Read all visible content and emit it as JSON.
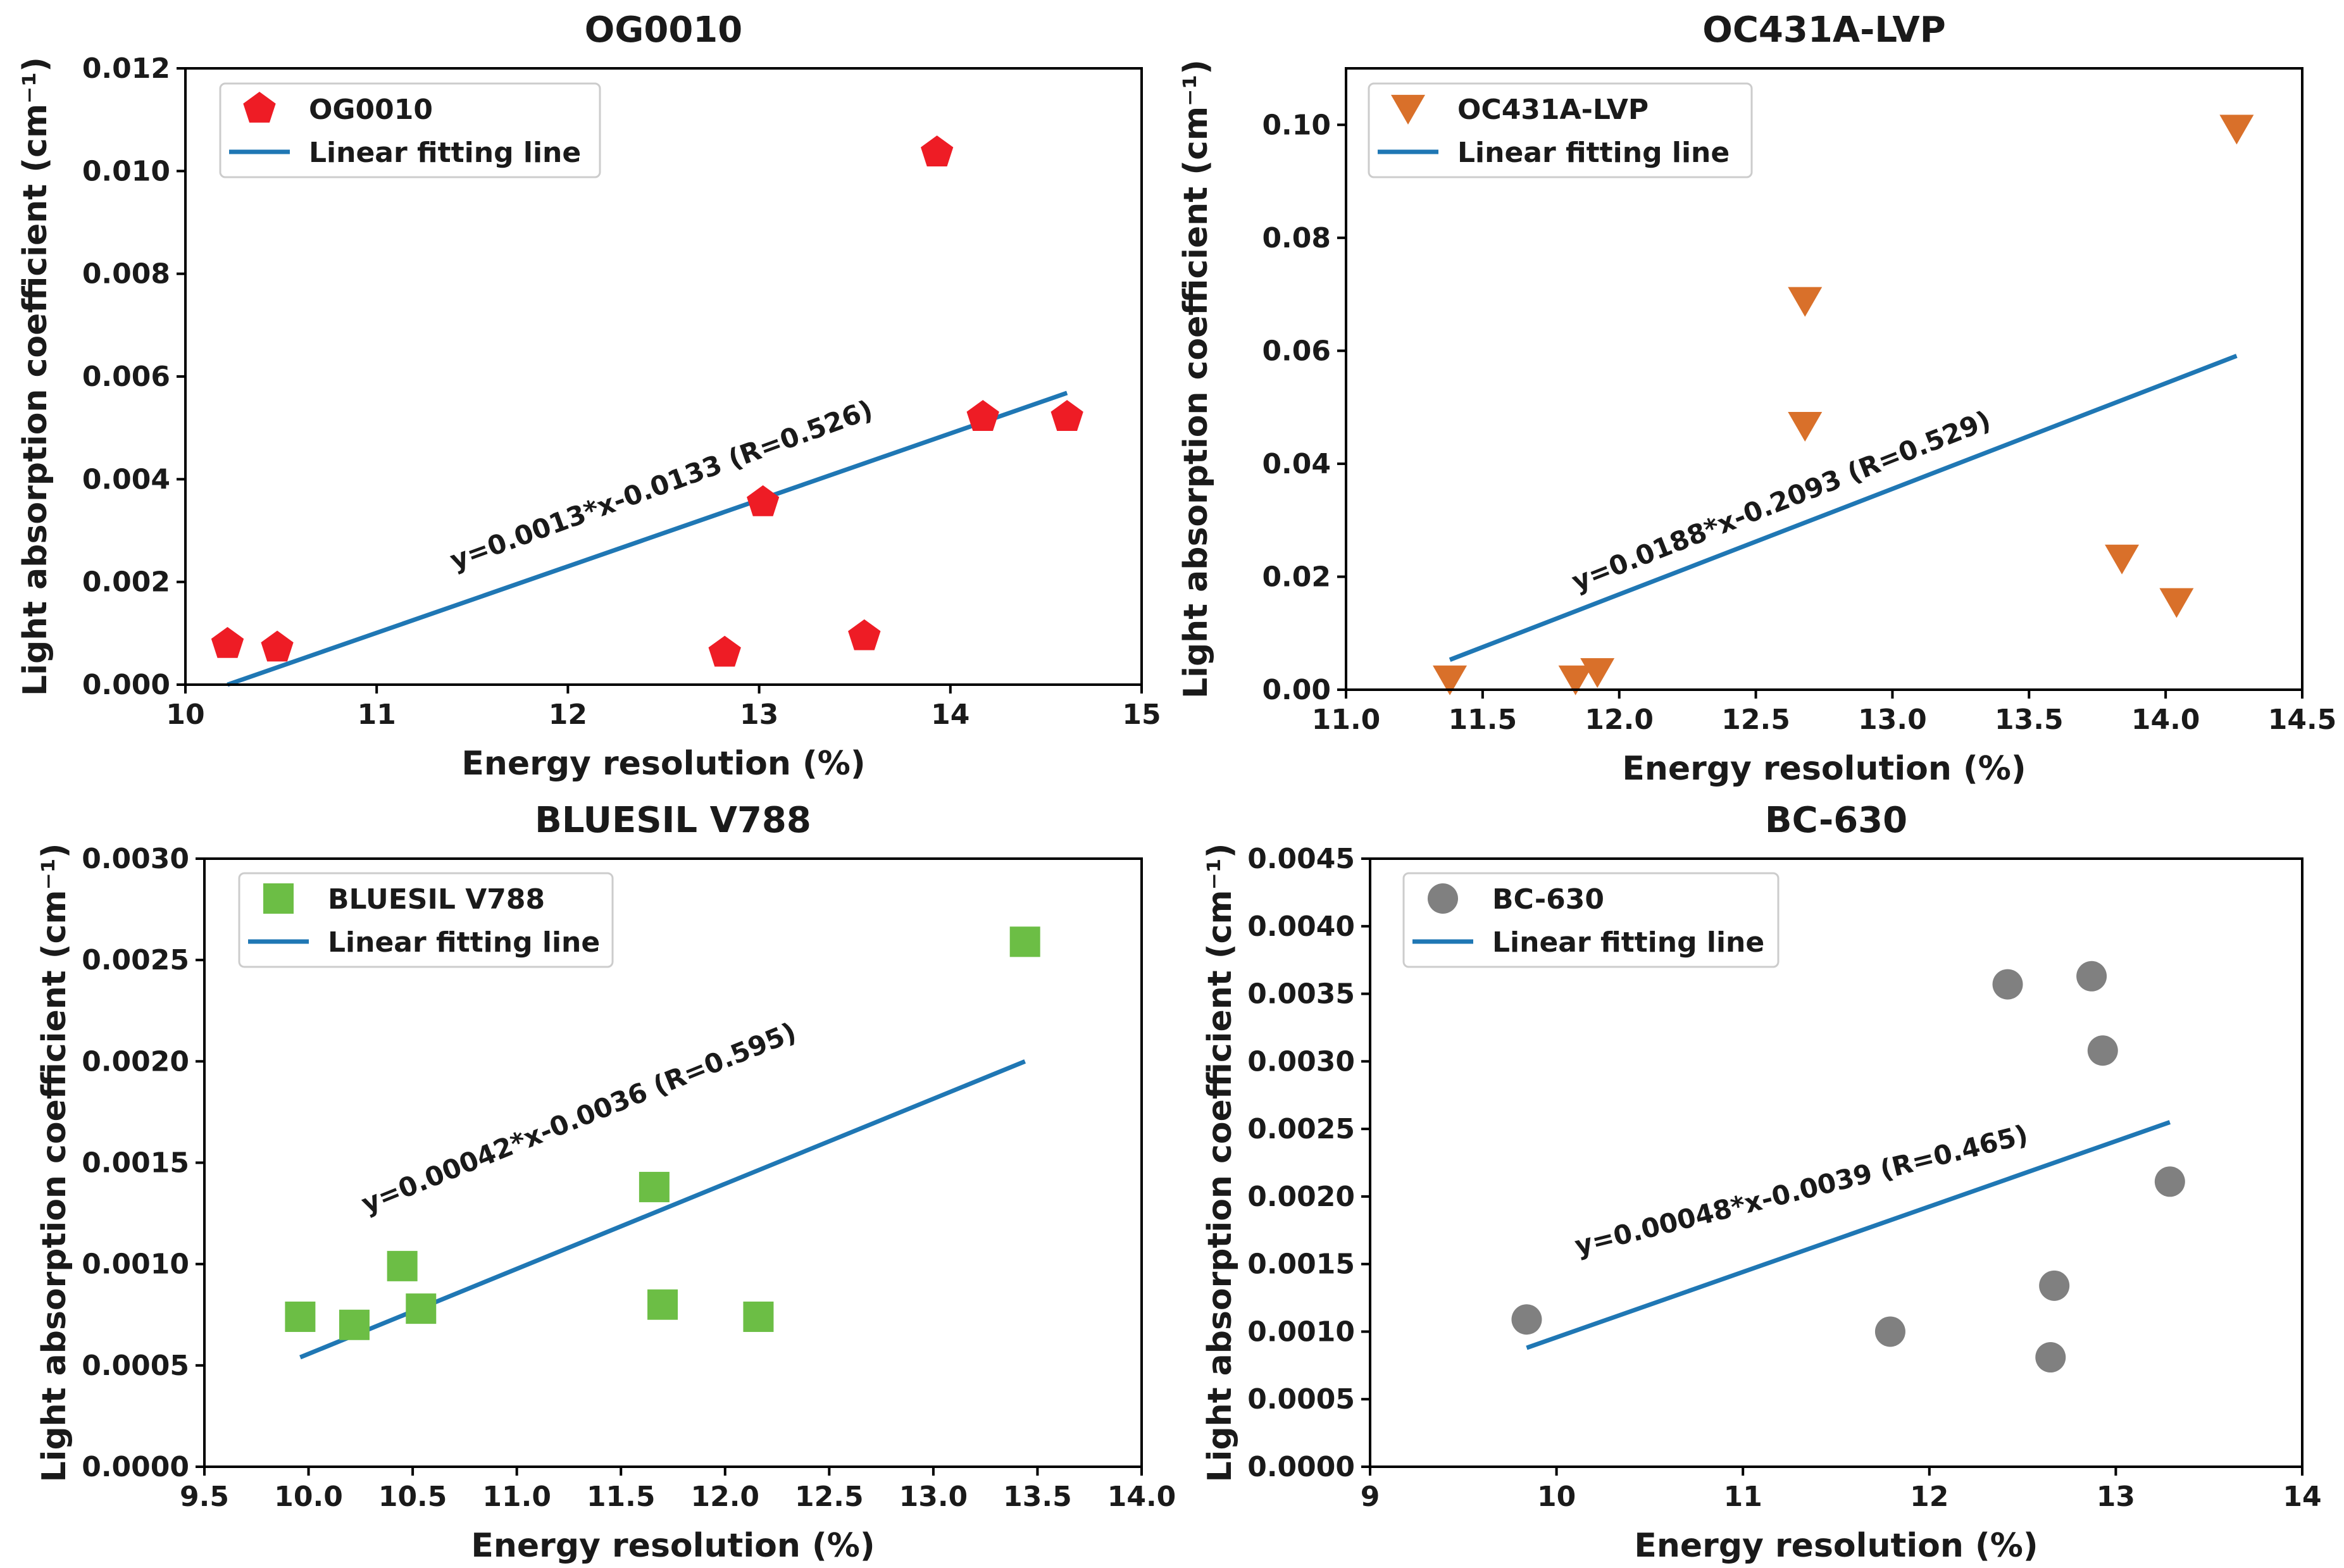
{
  "colors": {
    "fit_line": "#1f77b4",
    "og0010": "#ee1c25",
    "oc431a": "#d9702a",
    "bluesil": "#6cbe45",
    "bc630": "#808080"
  },
  "chart_data": [
    {
      "type": "scatter",
      "title": "OG0010",
      "xlabel": "Energy resolution (%)",
      "ylabel": "Light absorption coefficient (cm⁻¹)",
      "xlim": [
        10,
        15
      ],
      "ylim": [
        0,
        0.012
      ],
      "xticks": [
        10,
        11,
        12,
        13,
        14,
        15
      ],
      "xtick_labels": [
        "10",
        "11",
        "12",
        "13",
        "14",
        "15"
      ],
      "yticks": [
        0,
        0.002,
        0.004,
        0.006,
        0.008,
        0.01,
        0.012
      ],
      "ytick_labels": [
        "0.000",
        "0.002",
        "0.004",
        "0.006",
        "0.008",
        "0.010",
        "0.012"
      ],
      "marker": "pentagon",
      "marker_color": "#ee1c25",
      "series": [
        {
          "name": "OG0010",
          "x": [
            10.22,
            10.48,
            12.82,
            13.02,
            13.55,
            13.93,
            14.17,
            14.61
          ],
          "y": [
            0.00079,
            0.00072,
            0.00062,
            0.00355,
            0.00094,
            0.01036,
            0.00521,
            0.00521
          ]
        }
      ],
      "fit": {
        "name": "Linear fitting line",
        "x": [
          10.22,
          14.61
        ],
        "y": [
          0.0,
          0.00568
        ],
        "equation": "y=0.0013*x-0.0133 (R=0.526)"
      },
      "legend": [
        "OG0010",
        "Linear fitting line"
      ],
      "legend_position": "top-left"
    },
    {
      "type": "scatter",
      "title": "OC431A-LVP",
      "xlabel": "Energy resolution (%)",
      "ylabel": "Light absorption coefficient (cm⁻¹)",
      "xlim": [
        11.0,
        14.5
      ],
      "ylim": [
        0,
        0.11
      ],
      "xticks": [
        11.0,
        11.5,
        12.0,
        12.5,
        13.0,
        13.5,
        14.0,
        14.5
      ],
      "xtick_labels": [
        "11.0",
        "11.5",
        "12.0",
        "12.5",
        "13.0",
        "13.5",
        "14.0",
        "14.5"
      ],
      "yticks": [
        0,
        0.02,
        0.04,
        0.06,
        0.08,
        0.1
      ],
      "ytick_labels": [
        "0.00",
        "0.02",
        "0.04",
        "0.06",
        "0.08",
        "0.10"
      ],
      "marker": "triangle-down",
      "marker_color": "#d9702a",
      "series": [
        {
          "name": "OC431A-LVP",
          "x": [
            11.38,
            11.84,
            11.92,
            12.68,
            12.68,
            13.84,
            14.04,
            14.26
          ],
          "y": [
            0.0018,
            0.0018,
            0.0031,
            0.0688,
            0.0467,
            0.0232,
            0.0155,
            0.0993
          ]
        }
      ],
      "fit": {
        "name": "Linear fitting line",
        "x": [
          11.38,
          14.26
        ],
        "y": [
          0.0053,
          0.0591
        ],
        "equation": "y=0.0188*x-0.2093 (R=0.529)"
      },
      "legend": [
        "OC431A-LVP",
        "Linear fitting line"
      ],
      "legend_position": "top-left"
    },
    {
      "type": "scatter",
      "title": "BLUESIL V788",
      "xlabel": "Energy resolution (%)",
      "ylabel": "Light absorption coefficient (cm⁻¹)",
      "xlim": [
        9.5,
        14.0
      ],
      "ylim": [
        0,
        0.003
      ],
      "xticks": [
        9.5,
        10.0,
        10.5,
        11.0,
        11.5,
        12.0,
        12.5,
        13.0,
        13.5,
        14.0
      ],
      "xtick_labels": [
        "9.5",
        "10.0",
        "10.5",
        "11.0",
        "11.5",
        "12.0",
        "12.5",
        "13.0",
        "13.5",
        "14.0"
      ],
      "yticks": [
        0,
        0.0005,
        0.001,
        0.0015,
        0.002,
        0.0025,
        0.003
      ],
      "ytick_labels": [
        "0.0000",
        "0.0005",
        "0.0010",
        "0.0015",
        "0.0020",
        "0.0025",
        "0.0030"
      ],
      "marker": "square",
      "marker_color": "#6cbe45",
      "series": [
        {
          "name": "BLUESIL V788",
          "x": [
            9.96,
            10.22,
            10.45,
            10.54,
            11.66,
            11.7,
            12.16,
            13.44
          ],
          "y": [
            0.00074,
            0.0007,
            0.00099,
            0.00078,
            0.00138,
            0.0008,
            0.00074,
            0.00259
          ]
        }
      ],
      "fit": {
        "name": "Linear fitting line",
        "x": [
          9.96,
          13.44
        ],
        "y": [
          0.00054,
          0.002
        ],
        "equation": "y=0.00042*x-0.0036 (R=0.595)"
      },
      "legend": [
        "BLUESIL V788",
        "Linear fitting line"
      ],
      "legend_position": "top-left"
    },
    {
      "type": "scatter",
      "title": "BC-630",
      "xlabel": "Energy resolution (%)",
      "ylabel": "Light absorption coefficient (cm⁻¹)",
      "xlim": [
        9,
        14
      ],
      "ylim": [
        0,
        0.0045
      ],
      "xticks": [
        9,
        10,
        11,
        12,
        13,
        14
      ],
      "xtick_labels": [
        "9",
        "10",
        "11",
        "12",
        "13",
        "14"
      ],
      "yticks": [
        0,
        0.0005,
        0.001,
        0.0015,
        0.002,
        0.0025,
        0.003,
        0.0035,
        0.004,
        0.0045
      ],
      "ytick_labels": [
        "0.0000",
        "0.0005",
        "0.0010",
        "0.0015",
        "0.0020",
        "0.0025",
        "0.0030",
        "0.0035",
        "0.0040",
        "0.0045"
      ],
      "marker": "circle",
      "marker_color": "#808080",
      "series": [
        {
          "name": "BC-630",
          "x": [
            9.84,
            11.79,
            12.42,
            12.65,
            12.67,
            12.87,
            12.93,
            13.29
          ],
          "y": [
            0.00109,
            0.001,
            0.00357,
            0.00081,
            0.00134,
            0.00363,
            0.00308,
            0.00211
          ]
        }
      ],
      "fit": {
        "name": "Linear fitting line",
        "x": [
          9.84,
          13.29
        ],
        "y": [
          0.00088,
          0.00255
        ],
        "equation": "y=0.00048*x-0.0039 (R=0.465)"
      },
      "legend": [
        "BC-630",
        "Linear fitting line"
      ],
      "legend_position": "top-left"
    }
  ]
}
